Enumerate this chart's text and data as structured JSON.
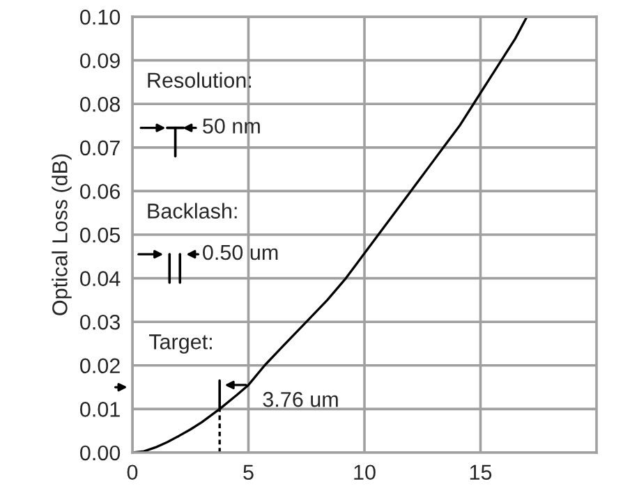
{
  "chart_data": {
    "type": "line",
    "ylabel": "Optical Loss (dB)",
    "x": [
      0,
      0.5,
      1,
      1.5,
      2,
      2.5,
      3,
      3.76,
      4.5,
      5,
      5.7,
      6.5,
      7.5,
      8.4,
      9.2,
      9.9,
      10.6,
      11.3,
      12,
      12.7,
      13.4,
      14.1,
      14.7,
      15.3,
      15.9,
      16.5,
      17
    ],
    "series": [
      {
        "color": "#000000",
        "values": [
          0,
          0.0003,
          0.0012,
          0.0024,
          0.0038,
          0.0053,
          0.007,
          0.01,
          0.0132,
          0.0155,
          0.02,
          0.0245,
          0.03,
          0.035,
          0.04,
          0.045,
          0.05,
          0.055,
          0.06,
          0.065,
          0.07,
          0.075,
          0.08,
          0.085,
          0.09,
          0.095,
          0.1
        ]
      }
    ],
    "xlim": [
      0,
      20
    ],
    "xticks": [
      0,
      5,
      10,
      15
    ],
    "ylim": [
      0,
      0.1
    ],
    "yticks": [
      {
        "value": 0,
        "label": "0.00"
      },
      {
        "value": 0.01,
        "label": "0.01"
      },
      {
        "value": 0.02,
        "label": "0.02"
      },
      {
        "value": 0.03,
        "label": "0.03"
      },
      {
        "value": 0.04,
        "label": "0.04"
      },
      {
        "value": 0.05,
        "label": "0.05"
      },
      {
        "value": 0.06,
        "label": "0.06"
      },
      {
        "value": 0.07,
        "label": "0.07"
      },
      {
        "value": 0.08,
        "label": "0.08"
      },
      {
        "value": 0.09,
        "label": "0.09"
      },
      {
        "value": 0.1,
        "label": "0.10"
      }
    ],
    "grid": true,
    "marker": "none",
    "line_style": "solid",
    "legend": false,
    "annotations": [
      "Resolution:",
      "50 nm",
      "Backlash:",
      "0.50 um",
      "Target:",
      {
        "text": "3.76 um",
        "x": 3.76,
        "y": 0.01
      }
    ]
  }
}
